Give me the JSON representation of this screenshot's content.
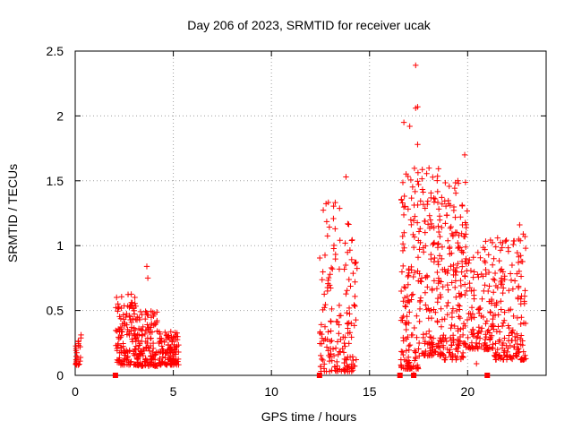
{
  "chart_data": {
    "type": "scatter",
    "title": "Day 206 of 2023, SRMTID for receiver ucak",
    "xlabel": "GPS time / hours",
    "ylabel": "SRMTID / TECUs",
    "xlim": [
      0,
      24
    ],
    "ylim": [
      0,
      2.5
    ],
    "x_ticks": [
      0,
      5,
      10,
      15,
      20
    ],
    "x_tick_labels": [
      "0",
      "5",
      "10",
      "15",
      "20"
    ],
    "y_ticks": [
      0,
      0.5,
      1,
      1.5,
      2,
      2.5
    ],
    "y_tick_labels": [
      "0",
      "0.5",
      "1",
      "1.5",
      "2",
      "2.5"
    ],
    "grid": true,
    "marker": "+",
    "color": "#ff0000",
    "zero_markers": [
      2.05,
      12.45,
      16.55,
      17.25,
      21.0
    ],
    "clusters": [
      {
        "x_start": 0.0,
        "x_end": 0.3,
        "count": 25,
        "y_min": 0.08,
        "y_max": 0.32
      },
      {
        "x_start": 2.05,
        "x_end": 3.2,
        "count": 140,
        "y_min": 0.08,
        "y_max": 0.63
      },
      {
        "x_start": 3.2,
        "x_end": 4.2,
        "count": 120,
        "y_min": 0.07,
        "y_max": 0.5
      },
      {
        "x_start": 4.2,
        "x_end": 5.3,
        "count": 120,
        "y_min": 0.08,
        "y_max": 0.34
      },
      {
        "x_start": 12.45,
        "x_end": 14.4,
        "count": 170,
        "y_min": 0.03,
        "y_max": 1.35
      },
      {
        "x_start": 16.6,
        "x_end": 17.5,
        "count": 130,
        "y_min": 0.05,
        "y_max": 1.6
      },
      {
        "x_start": 17.5,
        "x_end": 18.8,
        "count": 170,
        "y_min": 0.15,
        "y_max": 1.6
      },
      {
        "x_start": 18.8,
        "x_end": 20.0,
        "count": 160,
        "y_min": 0.12,
        "y_max": 1.5
      },
      {
        "x_start": 20.0,
        "x_end": 21.3,
        "count": 120,
        "y_min": 0.2,
        "y_max": 1.05
      },
      {
        "x_start": 21.3,
        "x_end": 23.0,
        "count": 170,
        "y_min": 0.12,
        "y_max": 1.1
      }
    ],
    "outliers": [
      {
        "x": 3.65,
        "y": 0.84
      },
      {
        "x": 3.7,
        "y": 0.75
      },
      {
        "x": 13.8,
        "y": 1.53
      },
      {
        "x": 14.0,
        "y": 0.33
      },
      {
        "x": 14.15,
        "y": 0.04
      },
      {
        "x": 16.75,
        "y": 1.95
      },
      {
        "x": 17.05,
        "y": 1.92
      },
      {
        "x": 17.35,
        "y": 2.06
      },
      {
        "x": 17.45,
        "y": 2.07
      },
      {
        "x": 17.35,
        "y": 2.39
      },
      {
        "x": 17.45,
        "y": 1.78
      },
      {
        "x": 17.25,
        "y": 0.01
      },
      {
        "x": 16.6,
        "y": 0.08
      },
      {
        "x": 19.85,
        "y": 1.7
      },
      {
        "x": 19.5,
        "y": 1.5
      },
      {
        "x": 20.45,
        "y": 0.09
      },
      {
        "x": 22.65,
        "y": 1.16
      },
      {
        "x": 22.6,
        "y": 1.05
      }
    ]
  }
}
